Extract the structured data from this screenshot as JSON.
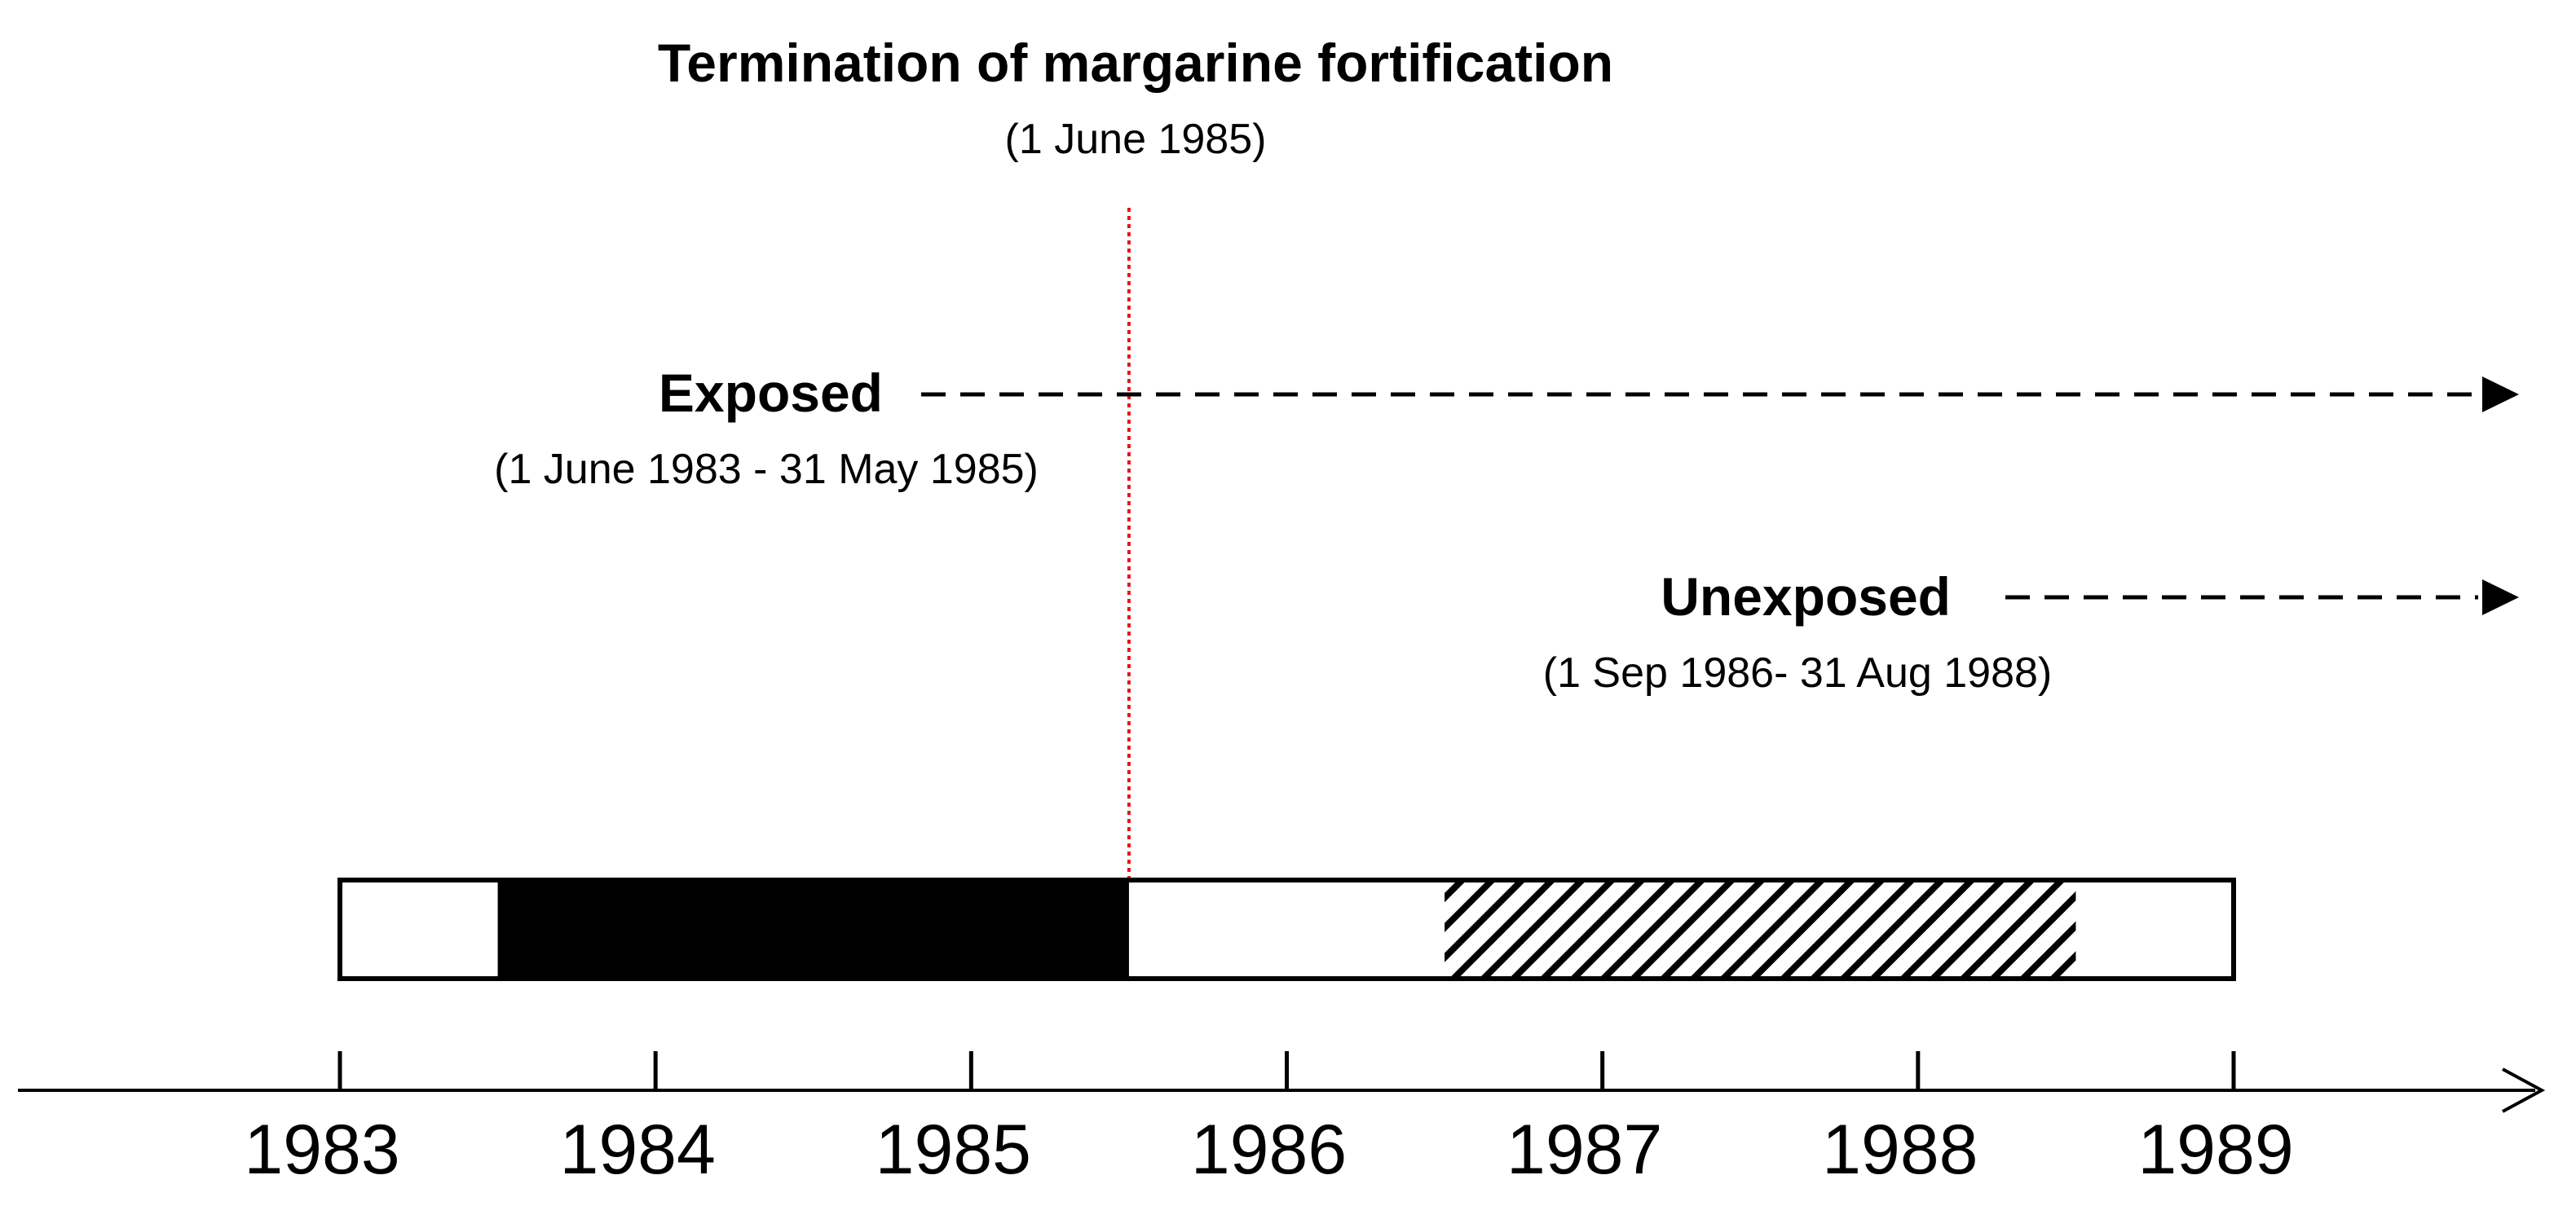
{
  "title": "Termination of margarine fortification",
  "title_date": "(1 June 1985)",
  "exposed": {
    "label": "Exposed",
    "period": "(1 June 1983 - 31 May 1985)",
    "start": 1983.5,
    "end": 1985.5
  },
  "unexposed": {
    "label": "Unexposed",
    "period": "(1 Sep 1986- 31 Aug 1988)",
    "start": 1986.5,
    "end": 1988.5
  },
  "termination_date": 1985.5,
  "axis": {
    "years": [
      "1983",
      "1984",
      "1985",
      "1986",
      "1987",
      "1988",
      "1989"
    ],
    "start": 1983,
    "end": 1989
  },
  "colors": {
    "line": "#000000",
    "exposed_fill": "#000000",
    "termination_line": "#e8141b",
    "background": "#ffffff"
  }
}
